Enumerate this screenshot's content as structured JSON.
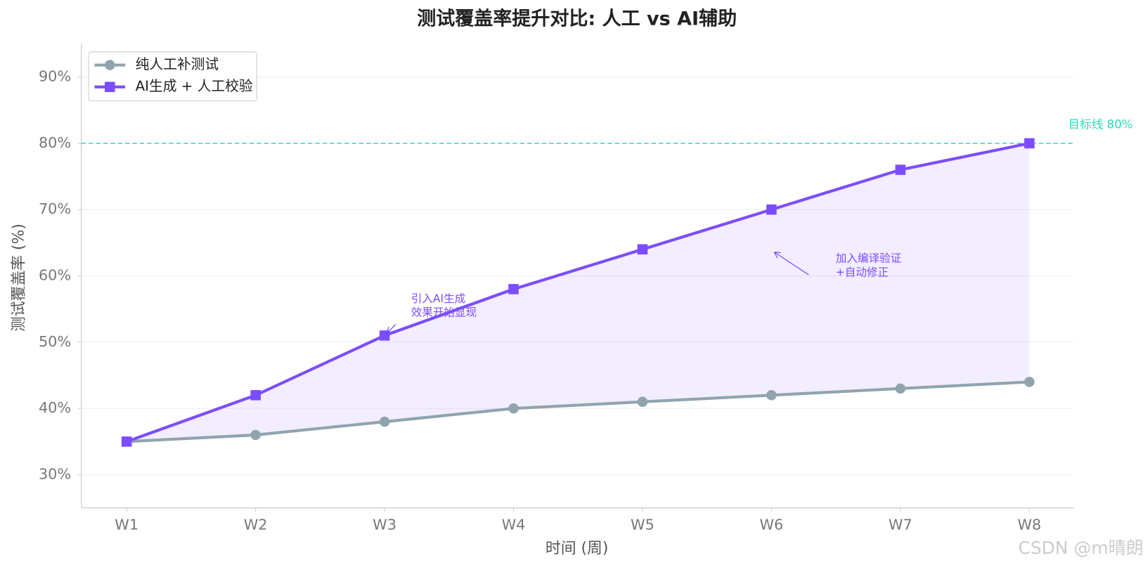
{
  "chart_data": {
    "type": "line",
    "title": "测试覆盖率提升对比: 人工 vs AI辅助",
    "xlabel": "时间 (周)",
    "ylabel": "测试覆盖率 (%)",
    "categories": [
      "W1",
      "W2",
      "W3",
      "W4",
      "W5",
      "W6",
      "W7",
      "W8"
    ],
    "series": [
      {
        "name": "纯人工补测试",
        "color": "#90a4ae",
        "marker": "circle",
        "values": [
          35,
          36,
          38,
          40,
          41,
          42,
          43,
          44
        ]
      },
      {
        "name": "AI生成 + 人工校验",
        "color": "#7c4dff",
        "marker": "square",
        "values": [
          35,
          42,
          51,
          58,
          64,
          70,
          76,
          80
        ]
      }
    ],
    "fill_between": {
      "color": "#7c4dff"
    },
    "ylim": [
      25,
      95
    ],
    "yticks": [
      {
        "value": 30,
        "label": "30%"
      },
      {
        "value": 40,
        "label": "40%"
      },
      {
        "value": 50,
        "label": "50%"
      },
      {
        "value": 60,
        "label": "60%"
      },
      {
        "value": 70,
        "label": "70%"
      },
      {
        "value": 80,
        "label": "80%"
      },
      {
        "value": 90,
        "label": "90%"
      }
    ],
    "grid": true,
    "legend": "upper left",
    "target_line": {
      "value": 80,
      "label": "目标线 80%",
      "color": "#2fd9b9"
    },
    "annotations": [
      {
        "lines": [
          "引入AI生成",
          "效果开始显现"
        ],
        "color": "#7c4dff"
      },
      {
        "lines": [
          "加入编译验证",
          "+自动修正"
        ],
        "color": "#7c4dff"
      }
    ],
    "watermark": "CSDN @m晴朗"
  }
}
